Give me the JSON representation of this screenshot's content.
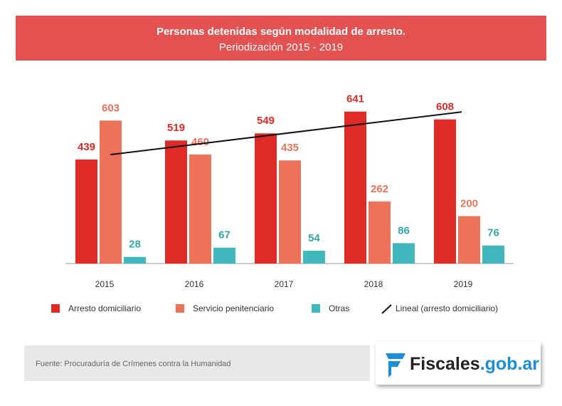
{
  "chart_data": {
    "type": "bar",
    "title": "Personas detenidas según modalidad de arresto.",
    "subtitle": "Periodización 2015 - 2019",
    "categories": [
      "2015",
      "2016",
      "2017",
      "2018",
      "2019"
    ],
    "series": [
      {
        "name": "Arresto domiciliario",
        "color": "#e02a25",
        "values": [
          439,
          519,
          549,
          641,
          608
        ]
      },
      {
        "name": "Servicio penitenciario",
        "color": "#ec735a",
        "values": [
          603,
          460,
          435,
          262,
          200
        ]
      },
      {
        "name": "Otras",
        "color": "#41b8be",
        "values": [
          28,
          67,
          54,
          86,
          76
        ]
      }
    ],
    "trendline": {
      "name": "Lineal (arresto domiciliario)",
      "color": "#111111"
    },
    "ylim": [
      0,
      700
    ],
    "source": "Fuente: Procuraduría de Crímenes contra la Humanidad",
    "logo": {
      "main": "Fiscales",
      "domain": ".gob.ar"
    }
  }
}
